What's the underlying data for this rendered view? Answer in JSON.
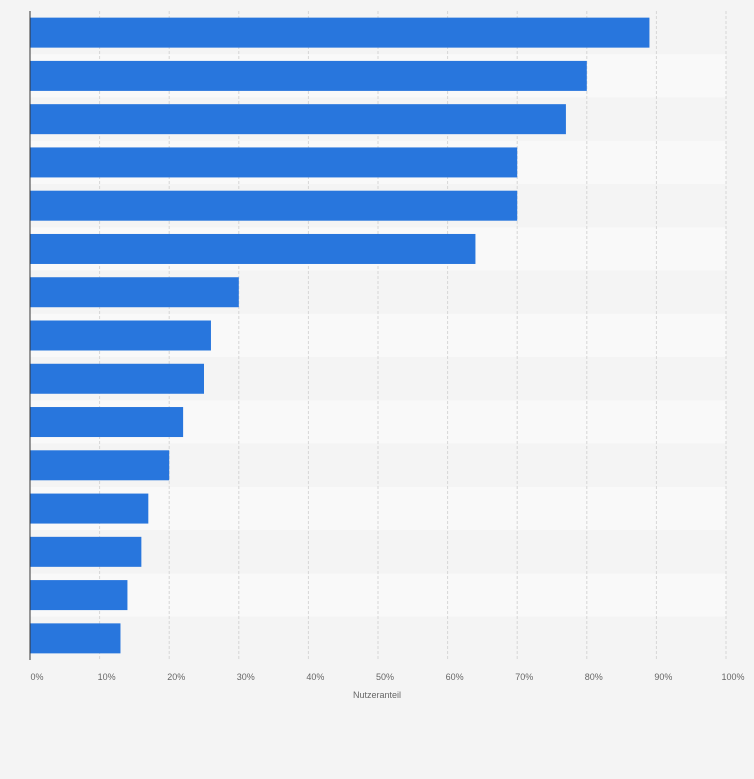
{
  "chart_data": {
    "type": "bar",
    "orientation": "horizontal",
    "categories": [
      "",
      "",
      "",
      "",
      "",
      "",
      "",
      "",
      "",
      "",
      "",
      "",
      "",
      "",
      ""
    ],
    "values": [
      89,
      80,
      77,
      70,
      70,
      64,
      30,
      26,
      25,
      22,
      20,
      17,
      16,
      14,
      13
    ],
    "xlim": [
      0,
      100
    ],
    "xticks": [
      0,
      10,
      20,
      30,
      40,
      50,
      60,
      70,
      80,
      90,
      100
    ],
    "xtick_labels": [
      "0%",
      "10%",
      "20%",
      "30%",
      "40%",
      "50%",
      "60%",
      "70%",
      "80%",
      "90%",
      "100%"
    ],
    "xlabel": "Nutzeranteil",
    "ylabel": "",
    "title": "",
    "grid": "vertical, dashed",
    "legend": "none",
    "colors": {
      "bar": "#2876dd",
      "band_light": "#f9f9f9",
      "band_dark": "#f4f4f4",
      "grid": "#d6d6d6",
      "axis": "#333333",
      "text": "#666666"
    }
  }
}
